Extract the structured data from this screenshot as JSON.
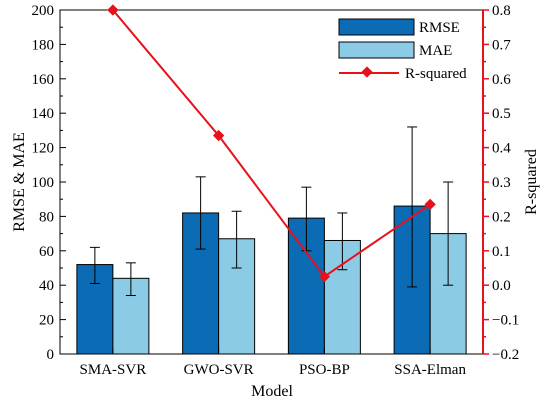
{
  "chart_data": {
    "type": "bar",
    "xlabel": "Model",
    "ylabel": "RMSE & MAE",
    "ylabel_right": "R-squared",
    "categories": [
      "SMA-SVR",
      "GWO-SVR",
      "PSO-BP",
      "SSA-Elman"
    ],
    "ylim": [
      0,
      200
    ],
    "ylim_right": [
      -0.2,
      0.8
    ],
    "left_ticks": [
      "0",
      "20",
      "40",
      "60",
      "80",
      "100",
      "120",
      "140",
      "160",
      "180",
      "200"
    ],
    "right_ticks": [
      "−0.2",
      "−0.1",
      "0.0",
      "0.1",
      "0.2",
      "0.3",
      "0.4",
      "0.5",
      "0.6",
      "0.7",
      "0.8"
    ],
    "legend_position": "top-right",
    "series": [
      {
        "name": "RMSE",
        "type": "bar",
        "color": "#0b6bb5",
        "values": [
          52,
          82,
          79,
          86
        ],
        "err_low": [
          41,
          61,
          60,
          39
        ],
        "err_high": [
          62,
          103,
          97,
          132
        ]
      },
      {
        "name": "MAE",
        "type": "bar",
        "color": "#8ccbe6",
        "values": [
          44,
          67,
          66,
          70
        ],
        "err_low": [
          34,
          50,
          49,
          40
        ],
        "err_high": [
          53,
          83,
          82,
          100
        ]
      },
      {
        "name": "R-squared",
        "type": "line",
        "axis": "right",
        "color": "#e8111b",
        "values": [
          0.8,
          0.435,
          0.025,
          0.235
        ]
      }
    ]
  }
}
